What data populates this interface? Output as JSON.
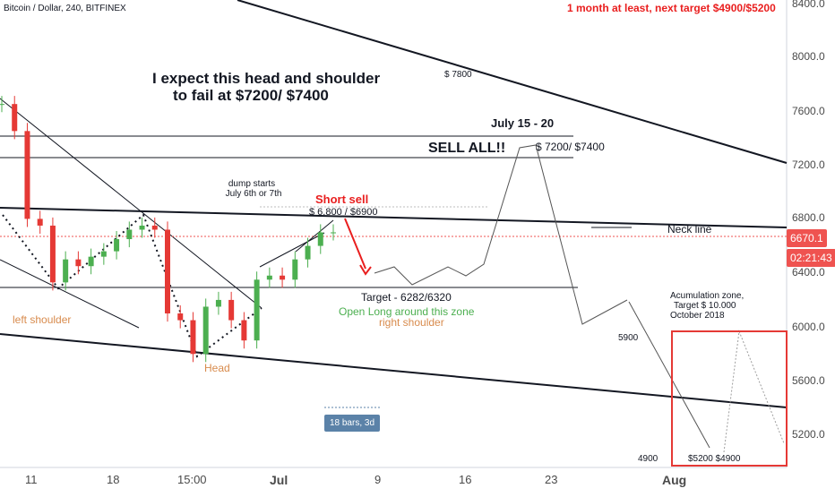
{
  "symbol_text": "Bitcoin / Dollar, 240, BITFINEX",
  "price_tag": "6670.1",
  "time_tag": "02:21:43",
  "annotations": {
    "title_line1": "I expect this head and shoulder",
    "title_line2": "to fail at $7200/ $7400",
    "target_red": "1 month at least, next target $4900/$5200",
    "p7800": "$ 7800",
    "july_15_20": "July 15 - 20",
    "sell_all": "SELL ALL!!",
    "p7200_7400": "$ 7200/  $7400",
    "dump_line1": "dump starts",
    "dump_line2": "July 6th or 7th",
    "short_sell": "Short sell",
    "short_price": "$ 6.800 / $6900",
    "neck_line": "Neck line",
    "target_6282": "Target - 6282/6320",
    "open_long": "Open Long around this zone",
    "right_shoulder": "right shoulder",
    "left_shoulder": "left shoulder",
    "head": "Head",
    "acc_line1": "Acumulation zone,",
    "acc_line2": "Target $ 10.000",
    "acc_line3": "October 2018",
    "p5900": "5900",
    "p4900": "4900",
    "p5200_4900": "$5200  $4900",
    "bars_label": "18 bars, 3d"
  },
  "colors": {
    "up": "#4caf50",
    "down": "#e53935",
    "annotation_red": "#e91e1e",
    "price_tag": "#ef5350",
    "time_tag": "#ef5350",
    "measure": "#5b82a8"
  },
  "chart_data": {
    "type": "line",
    "title": "Bitcoin / Dollar, 240, BITFINEX",
    "y_ticks": [
      "8400.0",
      "8000.0",
      "7600.0",
      "7200.0",
      "6800.0",
      "6400.0",
      "6000.0",
      "5600.0",
      "5200.0"
    ],
    "x_ticks": [
      "11",
      "18",
      "15:00",
      "Jul",
      "9",
      "16",
      "23",
      "Aug"
    ],
    "y_range": [
      4960,
      8420
    ],
    "last_price": 6670.1,
    "series": [
      {
        "name": "",
        "x": [
          "Jun 9",
          "Jun 10",
          "Jun 11",
          "Jun 12",
          "Jun 13",
          "Jun 14",
          "Jun 15",
          "Jun 16",
          "Jun 17",
          "Jun 18",
          "Jun 19",
          "Jun 20",
          "Jun 21",
          "Jun 22",
          "Jun 23",
          "Jun 24",
          "Jun 25",
          "Jun 26",
          "Jun 27",
          "Jun 28",
          "Jun 29",
          "Jun 30",
          "Jul 1",
          "Jul 2",
          "Jul 3",
          "Jul 4",
          "Jul 5"
        ],
        "values": [
          7650,
          7450,
          6800,
          6750,
          6330,
          6500,
          6450,
          6520,
          6560,
          6650,
          6720,
          6750,
          6720,
          6100,
          6050,
          5800,
          6150,
          6200,
          6050,
          5900,
          6350,
          6380,
          6350,
          6500,
          6600,
          6700,
          6700
        ]
      }
    ]
  }
}
